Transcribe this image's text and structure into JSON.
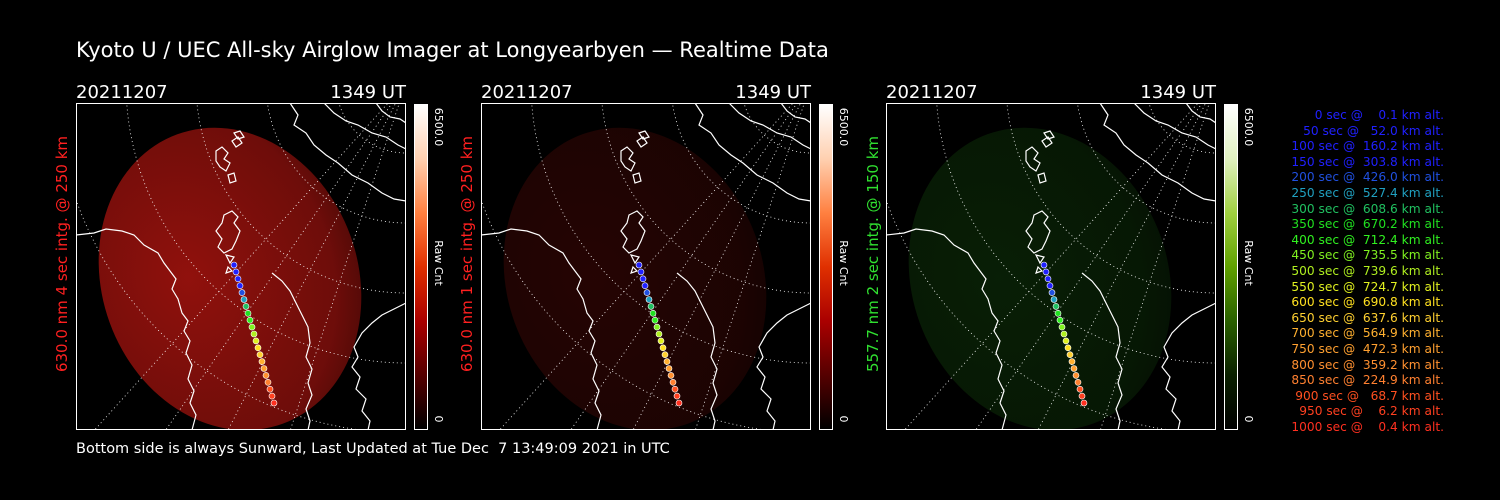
{
  "title": "Kyoto U / UEC All-sky Airglow Imager at Longyearbyen — Realtime Data",
  "footer": "Bottom side is always Sunward, Last Updated at Tue Dec  7 13:49:09 2021 in UTC",
  "panels": [
    {
      "date": "20211207",
      "time": "1349 UT",
      "ylabel": "630.0 nm 4 sec intg. @ 250 km",
      "label_color": "#ff2020",
      "cbar_max": "6500.0",
      "cbar_min": "0",
      "cbar_unit": "Raw Cnt",
      "theme": "red",
      "glow": 0.85
    },
    {
      "date": "20211207",
      "time": "1349 UT",
      "ylabel": "630.0 nm 1 sec intg. @ 250 km",
      "label_color": "#ff2020",
      "cbar_max": "6500.0",
      "cbar_min": "0",
      "cbar_unit": "Raw Cnt",
      "theme": "red",
      "glow": 0.22
    },
    {
      "date": "20211207",
      "time": "1349 UT",
      "ylabel": "557.7 nm 2 sec intg. @ 150 km",
      "label_color": "#30e030",
      "cbar_max": "6500.0",
      "cbar_min": "0",
      "cbar_unit": "Raw Cnt",
      "theme": "green",
      "glow": 0.28
    }
  ],
  "legend": [
    {
      "text": "0 sec @    0.1 km alt.",
      "color": "#2020ff"
    },
    {
      "text": "50 sec @   52.0 km alt.",
      "color": "#2020ff"
    },
    {
      "text": "100 sec @  160.2 km alt.",
      "color": "#2020ff"
    },
    {
      "text": "150 sec @  303.8 km alt.",
      "color": "#2020ff"
    },
    {
      "text": "200 sec @  426.0 km alt.",
      "color": "#2050e0"
    },
    {
      "text": "250 sec @  527.4 km alt.",
      "color": "#20a0c0"
    },
    {
      "text": "300 sec @  608.6 km alt.",
      "color": "#20c060"
    },
    {
      "text": "350 sec @  670.2 km alt.",
      "color": "#20e020"
    },
    {
      "text": "400 sec @  712.4 km alt.",
      "color": "#30f020"
    },
    {
      "text": "450 sec @  735.5 km alt.",
      "color": "#80f020"
    },
    {
      "text": "500 sec @  739.6 km alt.",
      "color": "#b0f020"
    },
    {
      "text": "550 sec @  724.7 km alt.",
      "color": "#e0f020"
    },
    {
      "text": "600 sec @  690.8 km alt.",
      "color": "#ffe020"
    },
    {
      "text": "650 sec @  637.6 km alt.",
      "color": "#ffd030"
    },
    {
      "text": "700 sec @  564.9 km alt.",
      "color": "#ffb030"
    },
    {
      "text": "750 sec @  472.3 km alt.",
      "color": "#ffa030"
    },
    {
      "text": "800 sec @  359.2 km alt.",
      "color": "#ff9030"
    },
    {
      "text": "850 sec @  224.9 km alt.",
      "color": "#ff8030"
    },
    {
      "text": "900 sec @   68.7 km alt.",
      "color": "#ff5020"
    },
    {
      "text": "950 sec @    6.2 km alt.",
      "color": "#ff4020"
    },
    {
      "text": "1000 sec @    0.4 km alt.",
      "color": "#ff3020"
    }
  ]
}
